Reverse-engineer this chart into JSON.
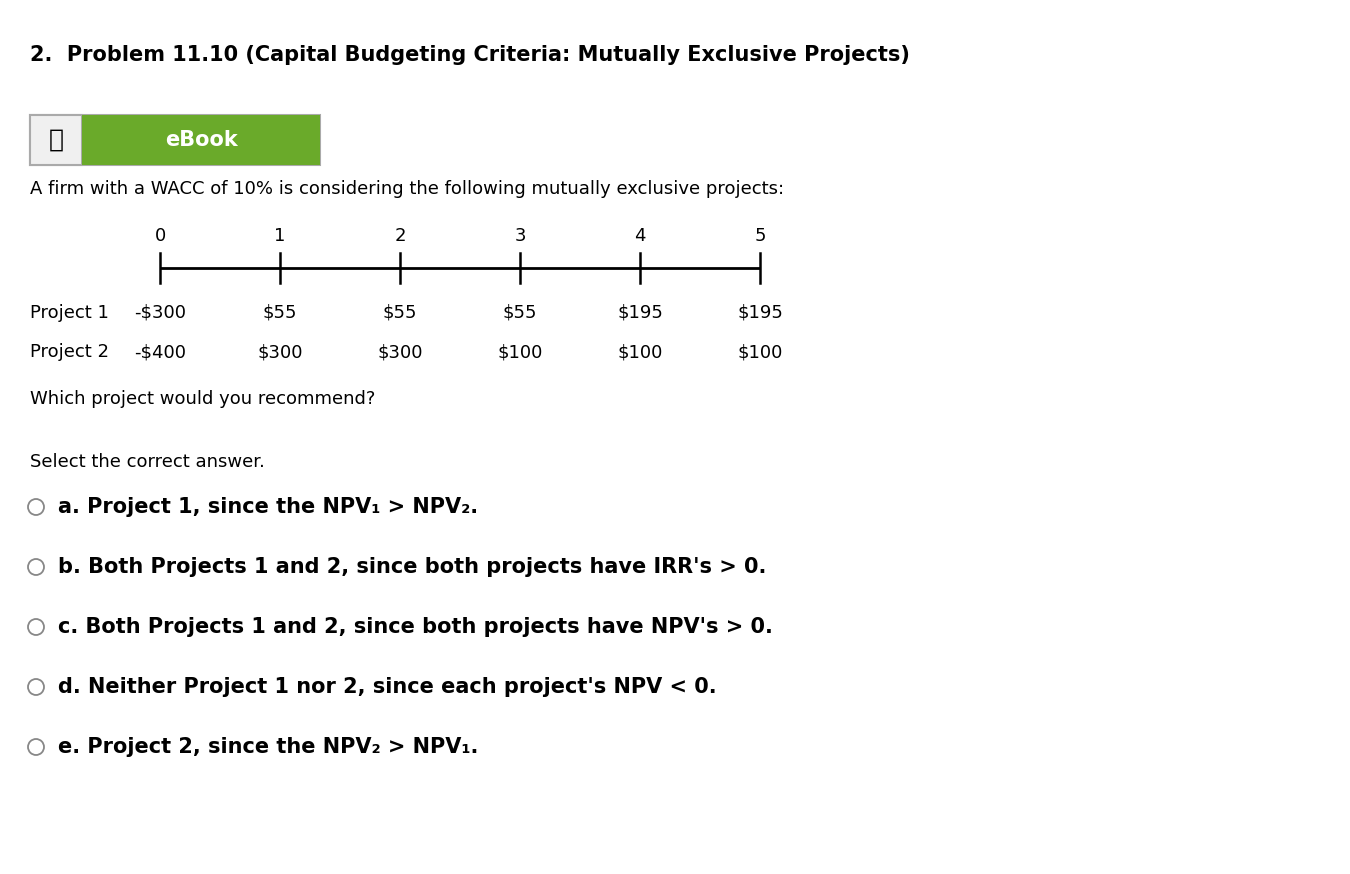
{
  "title": "2.  Problem 11.10 (Capital Budgeting Criteria: Mutually Exclusive Projects)",
  "ebook_text": "eBook",
  "intro_text": "A firm with a WACC of 10% is considering the following mutually exclusive projects:",
  "timeline_labels": [
    "0",
    "1",
    "2",
    "3",
    "4",
    "5"
  ],
  "project1_label": "Project 1",
  "project2_label": "Project 2",
  "project1_values": [
    "-$300",
    "$55",
    "$55",
    "$55",
    "$195",
    "$195"
  ],
  "project2_values": [
    "-$400",
    "$300",
    "$300",
    "$100",
    "$100",
    "$100"
  ],
  "which_text": "Which project would you recommend?",
  "select_text": "Select the correct answer.",
  "options": [
    {
      "letter": "a",
      "text": "Project 1, since the NPV₁ > NPV₂."
    },
    {
      "letter": "b",
      "text": "Both Projects 1 and 2, since both projects have IRR's > 0."
    },
    {
      "letter": "c",
      "text": "Both Projects 1 and 2, since both projects have NPV's > 0."
    },
    {
      "letter": "d",
      "text": "Neither Project 1 nor 2, since each project's NPV < 0."
    },
    {
      "letter": "e",
      "text": "Project 2, since the NPV₂ > NPV₁."
    }
  ],
  "bg_color": "#ffffff",
  "ebook_bg": "#6aaa2a",
  "text_color": "#000000",
  "title_fontsize": 15,
  "body_fontsize": 13,
  "option_fontsize": 15,
  "timeline_label_fontsize": 13,
  "select_fontsize": 13
}
